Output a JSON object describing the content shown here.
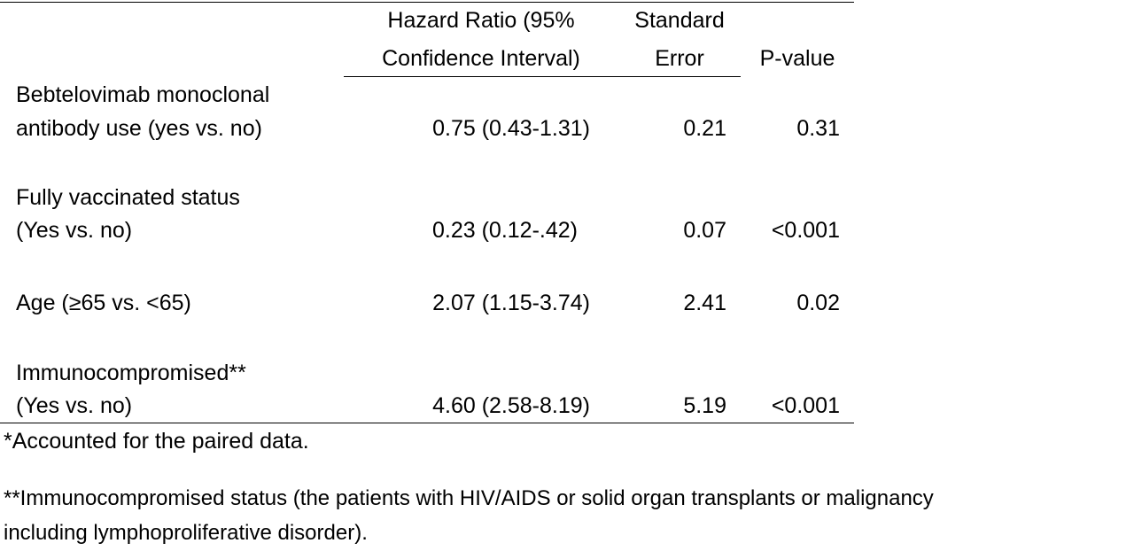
{
  "table": {
    "headers": {
      "hazard_ratio": [
        "Hazard Ratio (95%",
        "Confidence Interval)"
      ],
      "standard_error": [
        "Standard",
        "Error"
      ],
      "p_value": "P-value"
    },
    "rows": [
      {
        "label": [
          "Bebtelovimab monoclonal",
          "antibody use (yes vs. no)"
        ],
        "hazard_ratio": "0.75 (0.43-1.31)",
        "standard_error": "0.21",
        "p_value": "0.31"
      },
      {
        "label": [
          "Fully vaccinated status",
          "(Yes vs. no)"
        ],
        "hazard_ratio": "0.23 (0.12-.42)",
        "standard_error": "0.07",
        "p_value": "<0.001"
      },
      {
        "label": [
          "Age (≥65 vs. <65)"
        ],
        "hazard_ratio": "2.07 (1.15-3.74)",
        "standard_error": "2.41",
        "p_value": "0.02"
      },
      {
        "label": [
          "Immunocompromised**",
          "(Yes vs. no)"
        ],
        "hazard_ratio": "4.60 (2.58-8.19)",
        "standard_error": "5.19",
        "p_value": "<0.001"
      }
    ]
  },
  "footnotes": [
    "*Accounted for the paired data.",
    "**Immunocompromised status (the patients with HIV/AIDS or solid organ transplants or malignancy",
    "including lymphoproliferative disorder)."
  ]
}
